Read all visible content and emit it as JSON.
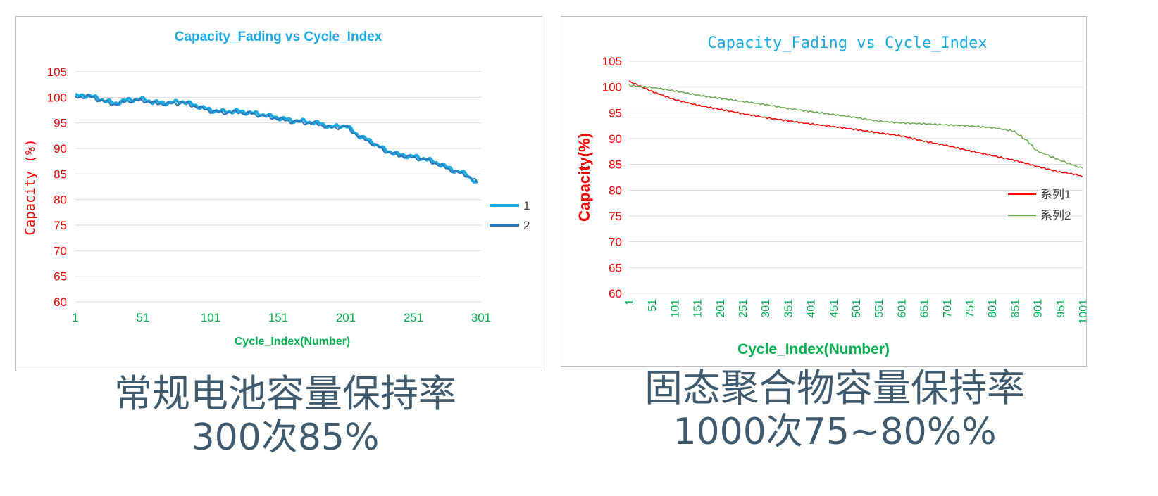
{
  "chart_data": [
    {
      "type": "line",
      "title": "Capacity_Fading vs Cycle_Index",
      "xlabel": "Cycle_Index(Number)",
      "ylabel": "Capacity (%)",
      "ylim": [
        60,
        105
      ],
      "yticks": [
        "60",
        "65",
        "70",
        "75",
        "80",
        "85",
        "90",
        "95",
        "100",
        "105"
      ],
      "xticks": [
        "1",
        "51",
        "101",
        "151",
        "201",
        "251",
        "301"
      ],
      "xlim": [
        1,
        301
      ],
      "grid": true,
      "legend_position": "right",
      "title_color": "#1ba9e1",
      "xaxis_color": "#00b050",
      "yaxis_color": "#ff0000",
      "series": [
        {
          "name": "1",
          "color": "#1ba9e1",
          "x": [
            1,
            10,
            20,
            30,
            40,
            51,
            60,
            70,
            80,
            90,
            101,
            110,
            120,
            130,
            140,
            151,
            160,
            170,
            180,
            190,
            201,
            210,
            220,
            230,
            240,
            251,
            260,
            270,
            280,
            290,
            298
          ],
          "values": [
            100.2,
            100.4,
            99.6,
            98.8,
            99.5,
            99.6,
            99.0,
            98.9,
            99.2,
            98.4,
            97.5,
            97.2,
            97.3,
            97.0,
            96.6,
            96.0,
            95.5,
            95.3,
            95.0,
            94.2,
            94.5,
            92.6,
            91.3,
            89.7,
            88.8,
            88.4,
            88.0,
            87.0,
            85.8,
            85.0,
            83.2
          ]
        },
        {
          "name": "2",
          "color": "#2e75b6",
          "x": [
            1,
            10,
            20,
            30,
            40,
            51,
            60,
            70,
            80,
            90,
            101,
            110,
            120,
            130,
            140,
            151,
            160,
            170,
            180,
            190,
            201,
            210,
            220,
            230,
            240,
            251,
            260,
            270,
            280,
            290,
            298
          ],
          "values": [
            100.0,
            100.2,
            99.4,
            98.6,
            99.3,
            99.4,
            98.8,
            98.7,
            99.0,
            98.2,
            97.3,
            97.0,
            97.1,
            96.8,
            96.4,
            95.8,
            95.3,
            95.1,
            94.8,
            94.0,
            94.3,
            92.4,
            91.1,
            89.5,
            88.6,
            88.2,
            87.8,
            86.8,
            85.6,
            84.8,
            83.4
          ]
        }
      ]
    },
    {
      "type": "line",
      "title": "Capacity_Fading vs Cycle_Index",
      "xlabel": "Cycle_Index(Number)",
      "ylabel": "Capacity(%)",
      "ylim": [
        60,
        105
      ],
      "yticks": [
        "60",
        "65",
        "70",
        "75",
        "80",
        "85",
        "90",
        "95",
        "100",
        "105"
      ],
      "xticks": [
        "1",
        "51",
        "101",
        "151",
        "201",
        "251",
        "301",
        "351",
        "401",
        "451",
        "501",
        "551",
        "601",
        "651",
        "701",
        "751",
        "801",
        "851",
        "901",
        "951",
        "1001"
      ],
      "xlim": [
        1,
        1001
      ],
      "grid": true,
      "legend_position": "right",
      "title_color": "#1ba9e1",
      "xaxis_color": "#00b050",
      "yaxis_color": "#ff0000",
      "series": [
        {
          "name": "系列1",
          "color": "#ff0000",
          "x": [
            1,
            51,
            101,
            151,
            201,
            251,
            301,
            351,
            401,
            451,
            501,
            551,
            601,
            651,
            701,
            751,
            801,
            851,
            901,
            950,
            1001
          ],
          "values": [
            101.0,
            99.0,
            97.5,
            96.5,
            95.8,
            95.0,
            94.2,
            93.5,
            92.8,
            92.2,
            91.6,
            91.0,
            90.5,
            89.6,
            88.8,
            87.8,
            86.8,
            85.8,
            84.5,
            83.5,
            82.6
          ]
        },
        {
          "name": "系列2",
          "color": "#6aa84f",
          "x": [
            1,
            51,
            101,
            151,
            201,
            251,
            301,
            351,
            401,
            451,
            501,
            551,
            601,
            651,
            701,
            751,
            801,
            851,
            880,
            901,
            951,
            1001
          ],
          "values": [
            100.3,
            100.0,
            99.4,
            98.6,
            97.9,
            97.2,
            96.5,
            95.7,
            95.1,
            94.6,
            94.1,
            93.5,
            93.2,
            93.0,
            92.7,
            92.4,
            92.0,
            91.3,
            89.5,
            87.5,
            85.8,
            84.3
          ]
        }
      ]
    }
  ],
  "captions": [
    {
      "line1": "常规电池容量保持率",
      "line2": "300次85%"
    },
    {
      "line1": "固态聚合物容量保持率",
      "line2": "1000次75~80%%"
    }
  ]
}
